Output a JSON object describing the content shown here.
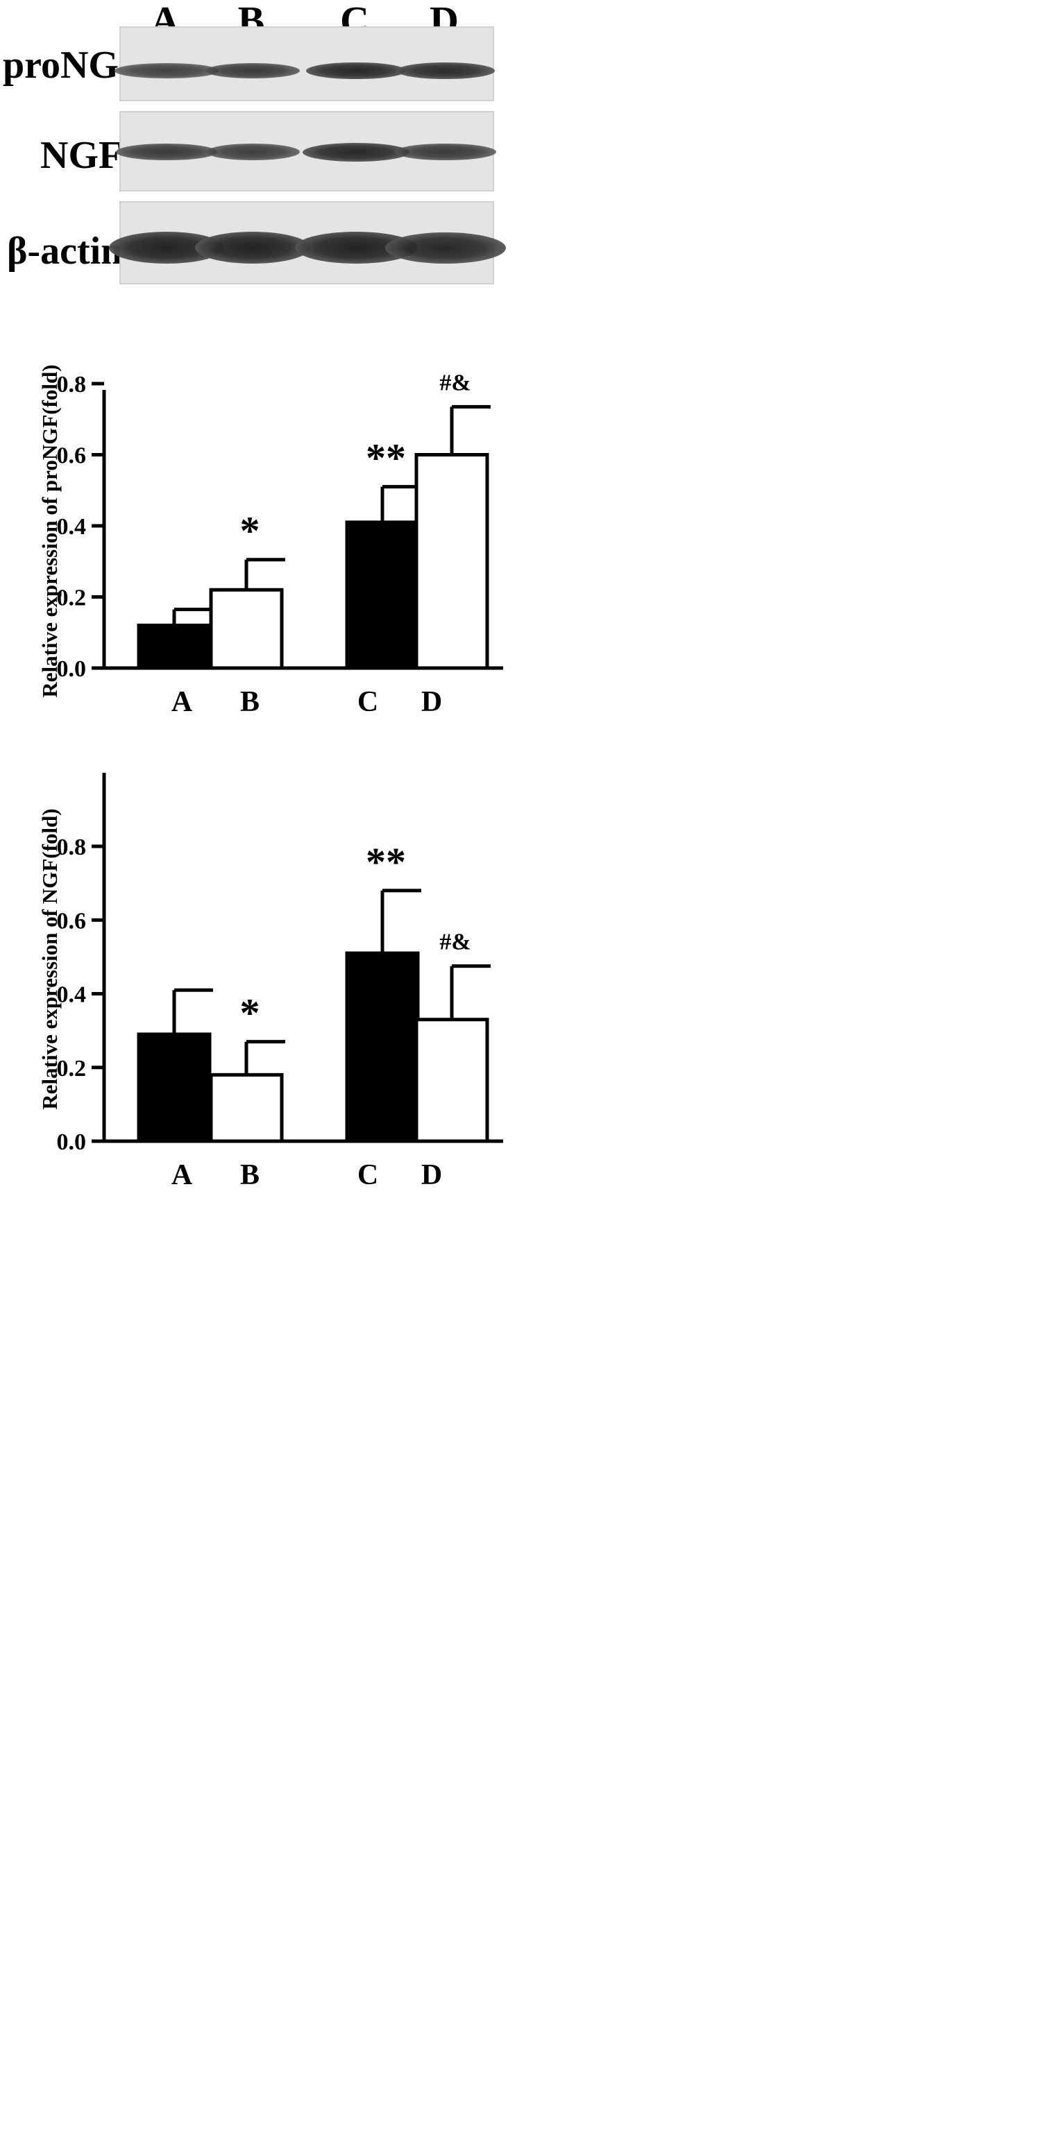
{
  "blot": {
    "lanes": [
      "A",
      "B",
      "C",
      "D"
    ],
    "rows": [
      {
        "label": "proNGF",
        "intensities": [
          0.55,
          0.65,
          0.85,
          0.8
        ]
      },
      {
        "label": "NGF",
        "intensities": [
          0.65,
          0.6,
          0.85,
          0.65
        ]
      },
      {
        "label": "β-actin",
        "intensities": [
          0.9,
          0.9,
          0.9,
          0.85
        ]
      }
    ]
  },
  "colors": {
    "filled_bar": "#000000",
    "open_bar": "#ffffff",
    "blot_background": "#e4e4e4"
  },
  "chart_data": [
    {
      "type": "bar",
      "categories": [
        "A",
        "B",
        "C",
        "D"
      ],
      "values": [
        0.12,
        0.22,
        0.41,
        0.6
      ],
      "errors": [
        0.045,
        0.085,
        0.1,
        0.135
      ],
      "bar_fill": [
        "filled",
        "open",
        "filled",
        "open"
      ],
      "annotations": [
        "",
        "*",
        "**",
        "#&"
      ],
      "title": "",
      "xlabel": "",
      "ylabel": "Relative expression of proNGF(fold)",
      "ylim": [
        0,
        0.8
      ],
      "yticks": [
        "0.0",
        "0.2",
        "0.4",
        "0.6",
        "0.8"
      ],
      "grid": false,
      "legend": "none"
    },
    {
      "type": "bar",
      "categories": [
        "A",
        "B",
        "C",
        "D"
      ],
      "values": [
        0.29,
        0.18,
        0.51,
        0.33
      ],
      "errors": [
        0.12,
        0.09,
        0.17,
        0.145
      ],
      "bar_fill": [
        "filled",
        "open",
        "filled",
        "open"
      ],
      "annotations": [
        "",
        "*",
        "**",
        "#&"
      ],
      "title": "",
      "xlabel": "",
      "ylabel": "Relative expression of NGF(fold)",
      "ylim": [
        0,
        0.8
      ],
      "yticks": [
        "0.0",
        "0.2",
        "0.4",
        "0.6",
        "0.8"
      ],
      "grid": false,
      "legend": "none"
    }
  ]
}
